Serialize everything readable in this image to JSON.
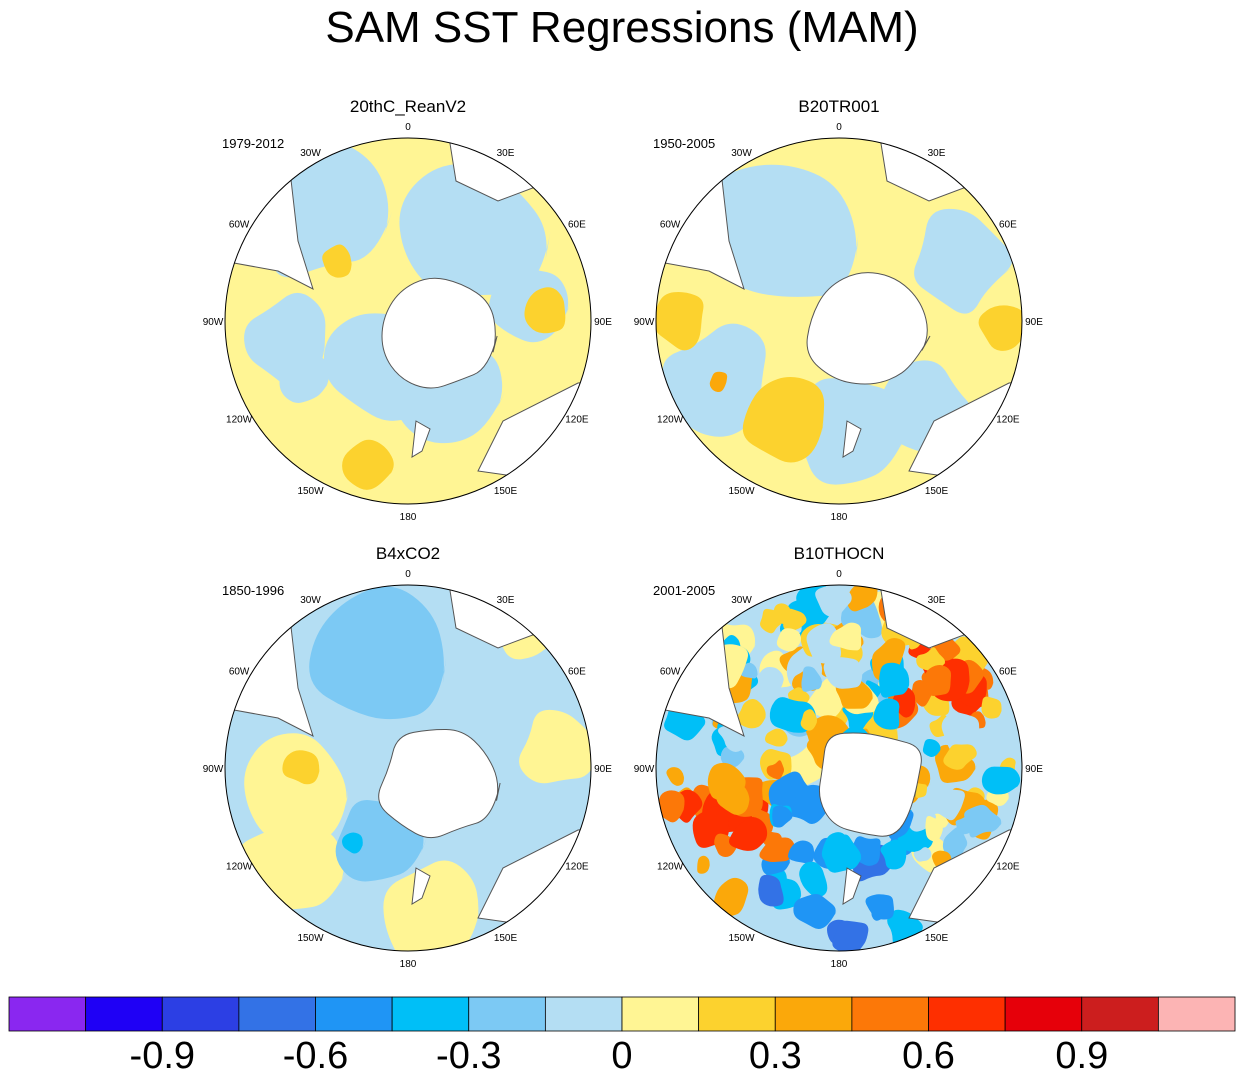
{
  "chart_data": {
    "type": "map",
    "title": "SAM SST Regressions (MAM)",
    "projection": "south-polar-stereographic",
    "longitude_labels": [
      "0",
      "30E",
      "60E",
      "90E",
      "120E",
      "150E",
      "180",
      "150W",
      "120W",
      "90W",
      "60W",
      "30W"
    ],
    "panels": [
      {
        "name": "20thC_ReanV2",
        "period": "1979-2012"
      },
      {
        "name": "B20TR001",
        "period": "1950-2005"
      },
      {
        "name": "B4xCO2",
        "period": "1850-1996"
      },
      {
        "name": "B10THOCN",
        "period": "2001-2005"
      }
    ],
    "colorbar": {
      "levels": [
        -1.05,
        -0.9,
        -0.75,
        -0.6,
        -0.45,
        -0.3,
        -0.15,
        0,
        0.15,
        0.3,
        0.45,
        0.6,
        0.75,
        0.9,
        1.05
      ],
      "tick_labels": [
        "-0.9",
        "-0.6",
        "-0.3",
        "0",
        "0.3",
        "0.6",
        "0.9"
      ],
      "colors": [
        "#8a27f0",
        "#1f00f5",
        "#2c3fe4",
        "#3372e6",
        "#1f95f5",
        "#00bff7",
        "#7cc9f4",
        "#b4def3",
        "#fff594",
        "#fcd22e",
        "#fba80a",
        "#fc7808",
        "#fe2f00",
        "#e6000a",
        "#cc1e1e",
        "#fcb4b4"
      ]
    }
  }
}
